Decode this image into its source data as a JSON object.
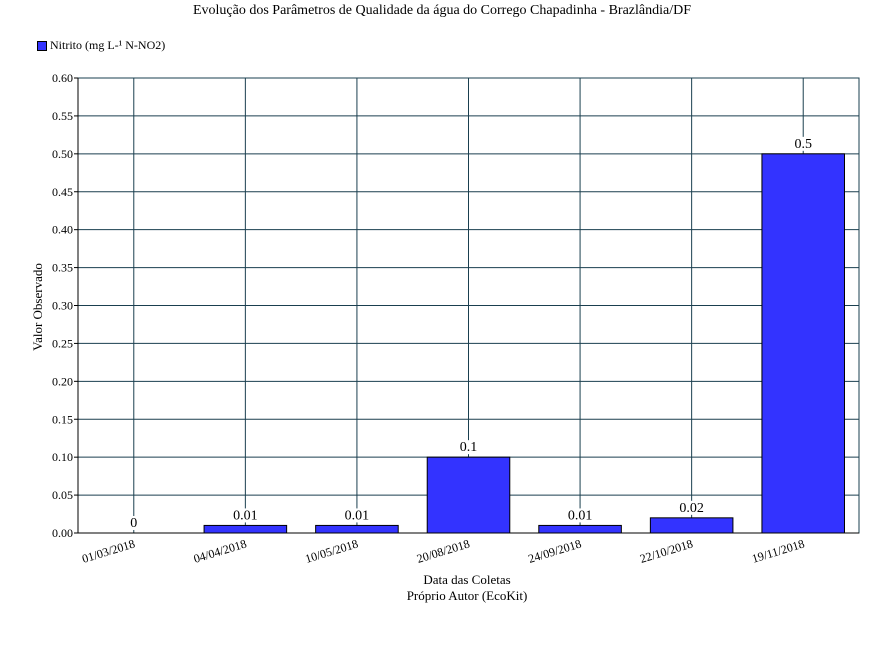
{
  "chart_data": {
    "type": "bar",
    "title": "Evolução dos Parâmetros de Qualidade da água do Corrego Chapadinha - Brazlândia/DF",
    "xlabel": "Data das Coletas",
    "ylabel": "Valor Observado",
    "source": "Próprio Autor (EcoKit)",
    "categories": [
      "01/03/2018",
      "04/04/2018",
      "10/05/2018",
      "20/08/2018",
      "24/09/2018",
      "22/10/2018",
      "19/11/2018"
    ],
    "series": [
      {
        "name": "Nitrito (mg L-¹ N-NO2)",
        "values": [
          0,
          0.01,
          0.01,
          0.1,
          0.01,
          0.02,
          0.5
        ],
        "labels": [
          "0",
          "0.01",
          "0.01",
          "0.1",
          "0.01",
          "0.02",
          "0.5"
        ],
        "color": "#3333ff"
      }
    ],
    "ylim": [
      0,
      0.6
    ],
    "yticks": [
      "0.00",
      "0.05",
      "0.10",
      "0.15",
      "0.20",
      "0.25",
      "0.30",
      "0.35",
      "0.40",
      "0.45",
      "0.50",
      "0.55",
      "0.60"
    ],
    "grid": true,
    "legend": "top-left"
  }
}
